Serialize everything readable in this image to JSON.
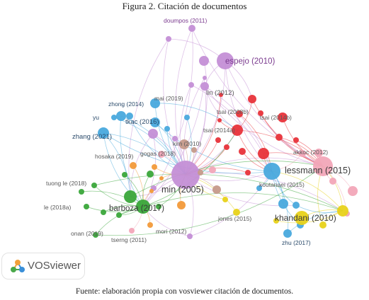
{
  "figure_title": "Figura 2. Citación de documentos",
  "caption": "Fuente: elaboración propia con vosviewer citación de documentos.",
  "logo": {
    "name": "VOSviewer",
    "icon": "vosviewer-logo-icon"
  },
  "colors": {
    "purple": "#c48fd6",
    "pink": "#f2a7b8",
    "red": "#e8333a",
    "blue": "#49a9dd",
    "green": "#3aa63a",
    "yellow": "#e8d21a",
    "orange": "#f29a3a",
    "brown": "#c69a8a"
  },
  "chart_data": {
    "type": "network",
    "labels": [
      "doumpos (2011)",
      "espejo (2010)",
      "mai (2019)",
      "lin (2012)",
      "zhong (2014)",
      "tsai (2008b)",
      "tsai (2014b)",
      "yu",
      "tkac (2016)",
      "zhang (2021)",
      "tsai (2014a)",
      "gogas (2018)",
      "kim (2010)",
      "hosaka (2019)",
      "akkoc (2012)",
      "lessmann (2015)",
      "tuong le (2018)",
      "min (2005)",
      "koutanaei (2015)",
      "le (2018a)",
      "barboza (2017)",
      "jones (2015)",
      "khandani (2010)",
      "onan (2019)",
      "mori (2012)",
      "tserng (2011)",
      "zhu (2017)"
    ]
  }
}
